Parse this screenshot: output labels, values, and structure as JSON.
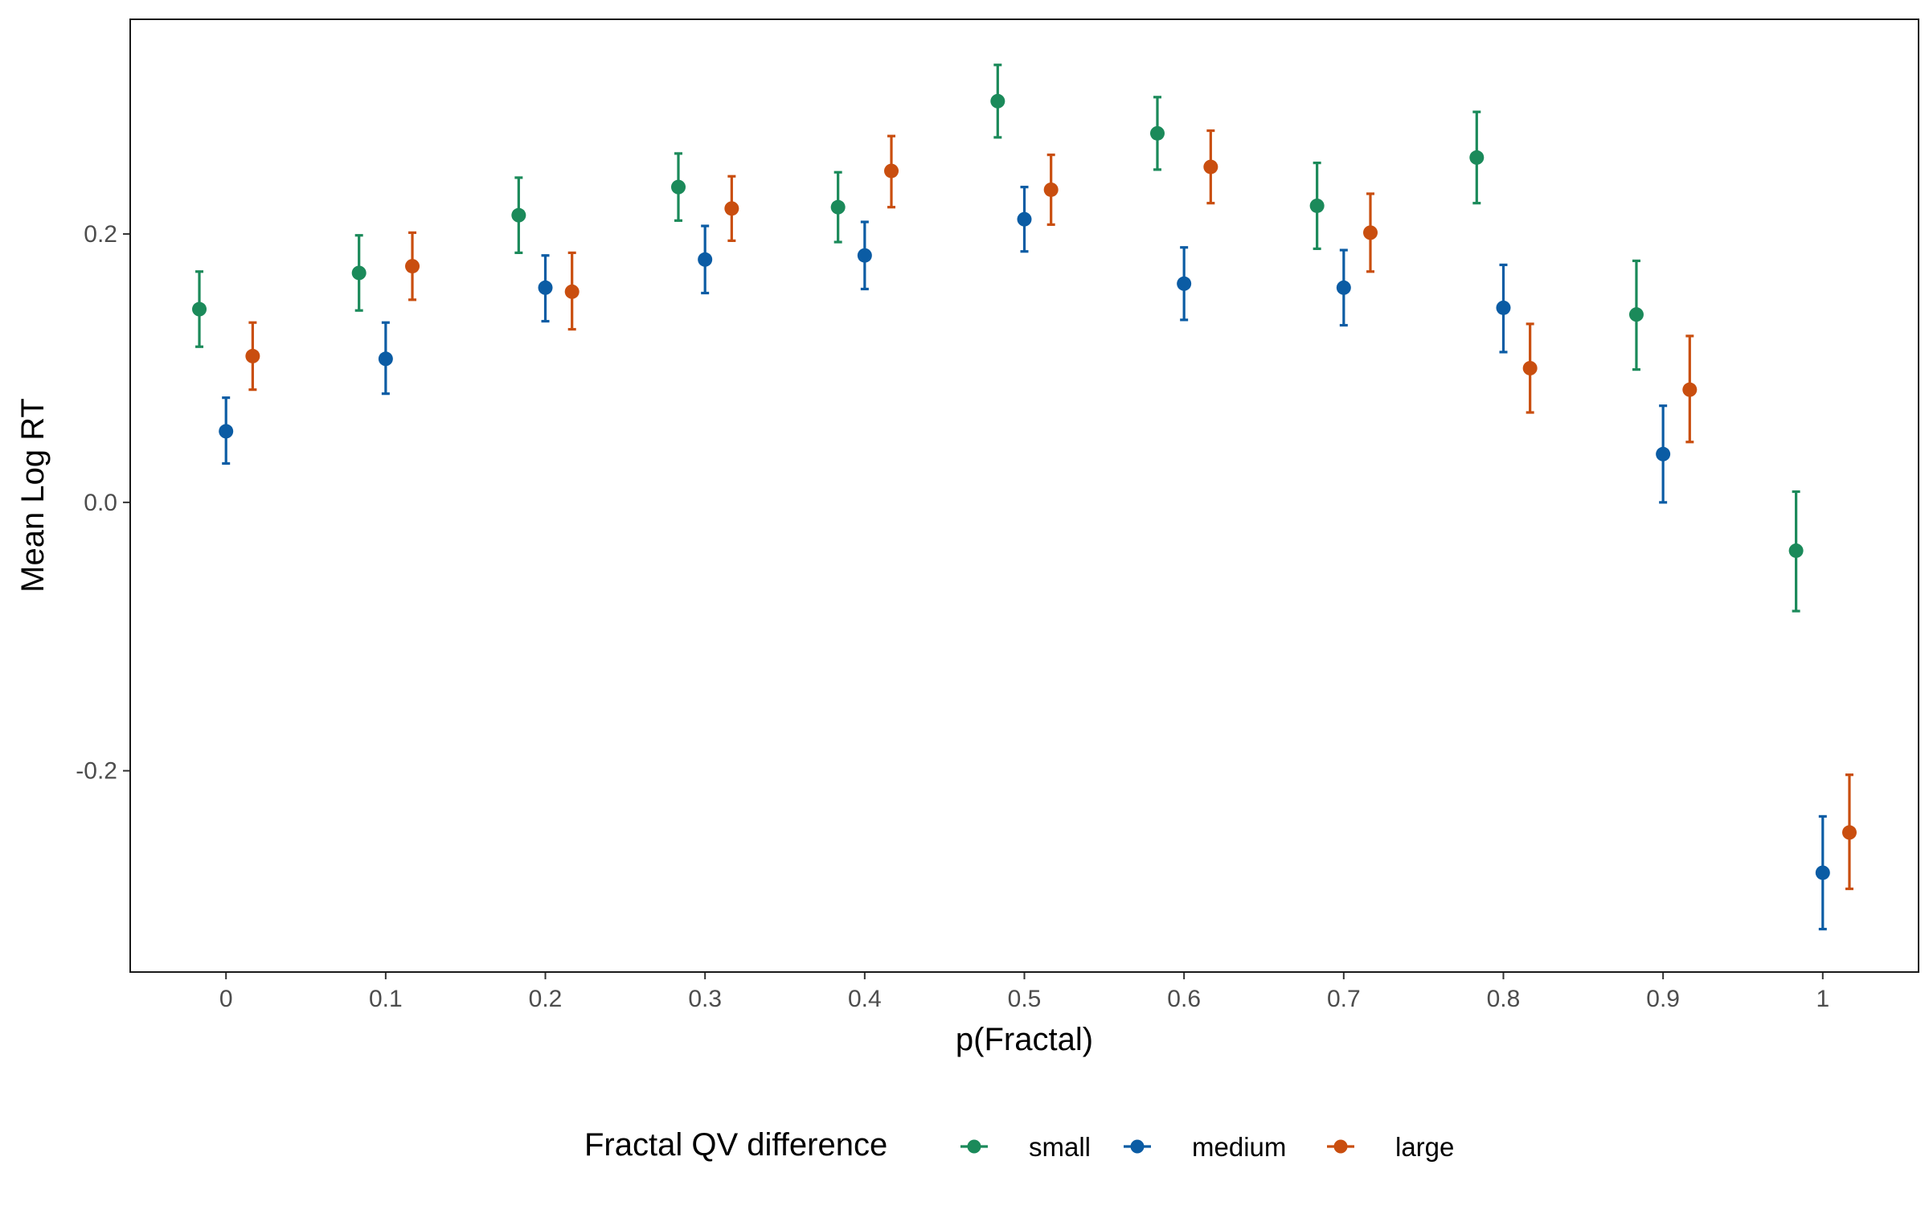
{
  "chart_data": {
    "type": "scatter",
    "subtype": "point-errorbar",
    "title": "",
    "xlabel": "p(Fractal)",
    "ylabel": "Mean Log RT",
    "x_ticks": [
      "0",
      "0.1",
      "0.2",
      "0.3",
      "0.4",
      "0.5",
      "0.6",
      "0.7",
      "0.8",
      "0.9",
      "1"
    ],
    "y_ticks": [
      "-0.2",
      "0.0",
      "0.2"
    ],
    "xlim": [
      -0.06,
      1.06
    ],
    "ylim": [
      -0.35,
      0.36
    ],
    "grid": false,
    "legend": {
      "title": "Fractal QV difference",
      "placement": "bottom"
    },
    "series": [
      {
        "name": "small",
        "color": "#1b8a5a",
        "dodge": -0.0167,
        "y": [
          0.144,
          0.171,
          0.214,
          0.235,
          0.22,
          0.299,
          0.275,
          0.221,
          0.257,
          0.14,
          -0.036
        ],
        "lower": [
          0.116,
          0.143,
          0.186,
          0.21,
          0.194,
          0.272,
          0.248,
          0.189,
          0.223,
          0.099,
          -0.081
        ],
        "upper": [
          0.172,
          0.199,
          0.242,
          0.26,
          0.246,
          0.326,
          0.302,
          0.253,
          0.291,
          0.18,
          0.008
        ]
      },
      {
        "name": "medium",
        "color": "#0b5ca4",
        "dodge": 0,
        "y": [
          0.053,
          0.107,
          0.16,
          0.181,
          0.184,
          0.211,
          0.163,
          0.16,
          0.145,
          0.036,
          -0.276
        ],
        "lower": [
          0.029,
          0.081,
          0.135,
          0.156,
          0.159,
          0.187,
          0.136,
          0.132,
          0.112,
          0.0,
          -0.318
        ],
        "upper": [
          0.078,
          0.134,
          0.184,
          0.206,
          0.209,
          0.235,
          0.19,
          0.188,
          0.177,
          0.072,
          -0.234
        ]
      },
      {
        "name": "large",
        "color": "#c94e0f",
        "dodge": 0.0167,
        "y": [
          0.109,
          0.176,
          0.157,
          0.219,
          0.247,
          0.233,
          0.25,
          0.201,
          0.1,
          0.084,
          -0.246
        ],
        "lower": [
          0.084,
          0.151,
          0.129,
          0.195,
          0.22,
          0.207,
          0.223,
          0.172,
          0.067,
          0.045,
          -0.288
        ],
        "upper": [
          0.134,
          0.201,
          0.186,
          0.243,
          0.273,
          0.259,
          0.277,
          0.23,
          0.133,
          0.124,
          -0.203
        ]
      }
    ]
  }
}
